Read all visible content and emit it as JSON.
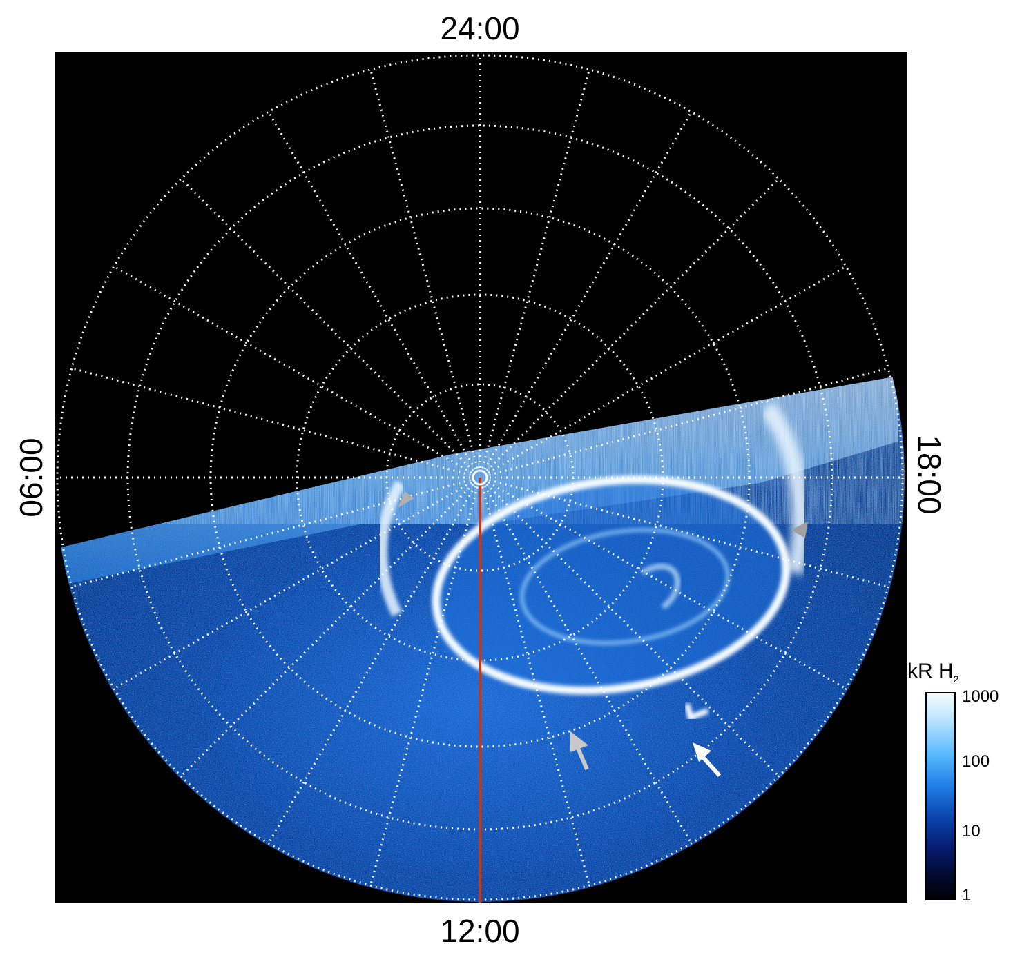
{
  "local_time_labels": {
    "top": "24:00",
    "bottom": "12:00",
    "left": "06:00",
    "right": "18:00"
  },
  "colorbar": {
    "title_main": "kR H",
    "title_sub": "2",
    "ticks": [
      "1000",
      "100",
      "10",
      "1"
    ],
    "scale": "log",
    "range": [
      1,
      1000
    ]
  },
  "colors": {
    "background": "#000000",
    "grid": "#ffffff",
    "aurora_bright": "#f2f9ff",
    "aurora_mid": "#3a9bf5",
    "aurora_dark": "#0a3a9e",
    "meridian_line": "#c0391b",
    "arrow_gray": "#a9a9a9",
    "arrow_white": "#ffffff"
  },
  "annotations": {
    "arrows": [
      "gray-arrowhead-left",
      "gray-arrowhead-right",
      "gray-arrow-lower",
      "white-arrow-lower-right"
    ],
    "meridian": "red-line-noon"
  }
}
